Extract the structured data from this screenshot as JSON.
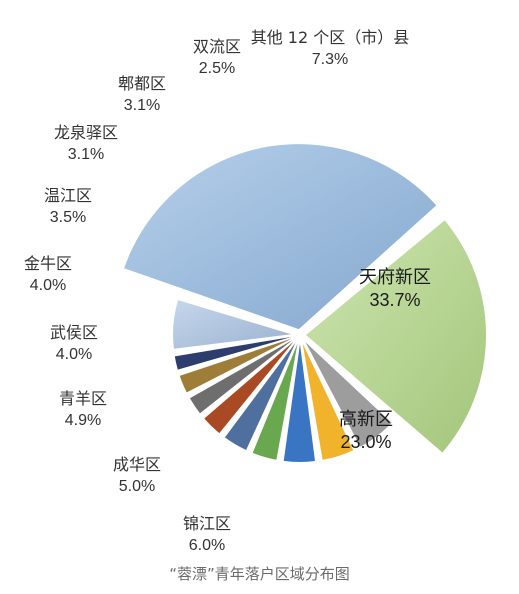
{
  "caption": "“蓉漂”青年落户区域分布图",
  "chart_data": {
    "type": "pie",
    "title": "“蓉漂”青年落户区域分布图",
    "unit": "%",
    "legend": "none",
    "slices": [
      {
        "label": "天府新区",
        "value": 33.7,
        "value_text": "33.7%",
        "color": "#8fb6e0"
      },
      {
        "label": "高新区",
        "value": 23.0,
        "value_text": "23.0%",
        "color": "#b2d786"
      },
      {
        "label": "锦江区",
        "value": 6.0,
        "value_text": "6.0%",
        "color": "#9d9d9d"
      },
      {
        "label": "成华区",
        "value": 5.0,
        "value_text": "5.0%",
        "color": "#f2b32c"
      },
      {
        "label": "青羊区",
        "value": 4.9,
        "value_text": "4.9%",
        "color": "#3a75c4"
      },
      {
        "label": "武侯区",
        "value": 4.0,
        "value_text": "4.0%",
        "color": "#6aa84f"
      },
      {
        "label": "金牛区",
        "value": 4.0,
        "value_text": "4.0%",
        "color": "#4f6f9e"
      },
      {
        "label": "温江区",
        "value": 3.5,
        "value_text": "3.5%",
        "color": "#a94a24"
      },
      {
        "label": "龙泉驿区",
        "value": 3.1,
        "value_text": "3.1%",
        "color": "#6e6e6e"
      },
      {
        "label": "郫都区",
        "value": 3.1,
        "value_text": "3.1%",
        "color": "#9d7d37"
      },
      {
        "label": "双流区",
        "value": 2.5,
        "value_text": "2.5%",
        "color": "#2d3e6e"
      },
      {
        "label": "其他 12 个区（市）县",
        "value": 7.3,
        "value_text": "7.3%",
        "color": "#a8c2e2"
      }
    ]
  }
}
